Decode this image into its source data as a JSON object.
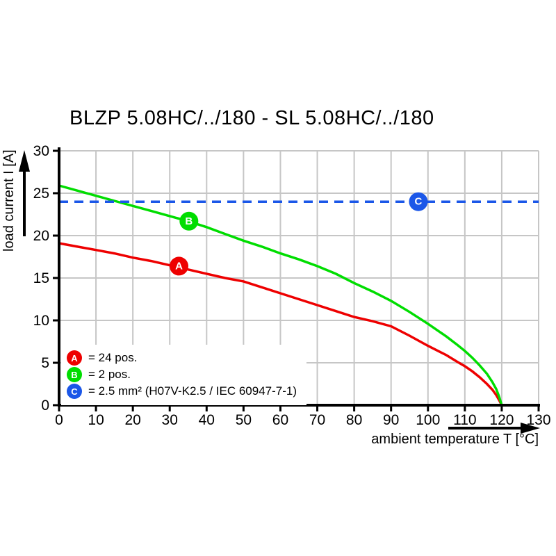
{
  "title": "BLZP 5.08HC/../180 - SL 5.08HC/../180",
  "colors": {
    "series_a_red": "#ee0000",
    "series_b_green": "#00dd00",
    "series_c_blue": "#1b57e8",
    "grid": "#c6c6c6",
    "axis": "#000000"
  },
  "chart_data": {
    "type": "line",
    "title": "BLZP 5.08HC/../180 - SL 5.08HC/../180",
    "xlabel": "ambient temperature T [°C]",
    "ylabel": "load current I [A]",
    "xlim": [
      0,
      130
    ],
    "ylim": [
      0,
      30
    ],
    "x_ticks": [
      0,
      10,
      20,
      30,
      40,
      50,
      60,
      70,
      80,
      90,
      100,
      110,
      120,
      130
    ],
    "y_ticks": [
      0,
      5,
      10,
      15,
      20,
      25,
      30
    ],
    "grid": true,
    "series": [
      {
        "id": "a",
        "name": "A = 24 pos.",
        "color": "#ee0000",
        "style": "solid",
        "points": [
          [
            0,
            19.1
          ],
          [
            5,
            18.7
          ],
          [
            10,
            18.3
          ],
          [
            15,
            17.9
          ],
          [
            20,
            17.4
          ],
          [
            25,
            17.0
          ],
          [
            30,
            16.5
          ],
          [
            35,
            16.0
          ],
          [
            40,
            15.5
          ],
          [
            45,
            15.0
          ],
          [
            50,
            14.6
          ],
          [
            55,
            13.9
          ],
          [
            60,
            13.2
          ],
          [
            65,
            12.5
          ],
          [
            70,
            11.8
          ],
          [
            75,
            11.1
          ],
          [
            80,
            10.4
          ],
          [
            85,
            9.9
          ],
          [
            90,
            9.3
          ],
          [
            95,
            8.2
          ],
          [
            100,
            7.0
          ],
          [
            105,
            5.9
          ],
          [
            108,
            5.1
          ],
          [
            110,
            4.6
          ],
          [
            112,
            4.0
          ],
          [
            114,
            3.3
          ],
          [
            116,
            2.5
          ],
          [
            117.5,
            1.8
          ],
          [
            118.5,
            1.2
          ],
          [
            119.3,
            0.6
          ],
          [
            120,
            0
          ]
        ]
      },
      {
        "id": "b",
        "name": "B = 2 pos.",
        "color": "#00dd00",
        "style": "solid",
        "points": [
          [
            0,
            25.9
          ],
          [
            5,
            25.3
          ],
          [
            10,
            24.7
          ],
          [
            15,
            24.1
          ],
          [
            20,
            23.5
          ],
          [
            25,
            22.9
          ],
          [
            30,
            22.3
          ],
          [
            35,
            21.7
          ],
          [
            40,
            21.0
          ],
          [
            45,
            20.2
          ],
          [
            50,
            19.4
          ],
          [
            55,
            18.7
          ],
          [
            60,
            17.9
          ],
          [
            65,
            17.2
          ],
          [
            70,
            16.4
          ],
          [
            75,
            15.5
          ],
          [
            80,
            14.4
          ],
          [
            85,
            13.4
          ],
          [
            90,
            12.3
          ],
          [
            95,
            11.0
          ],
          [
            100,
            9.6
          ],
          [
            105,
            8.1
          ],
          [
            108,
            7.1
          ],
          [
            110,
            6.4
          ],
          [
            112,
            5.6
          ],
          [
            114,
            4.7
          ],
          [
            116,
            3.7
          ],
          [
            117.5,
            2.7
          ],
          [
            118.5,
            1.9
          ],
          [
            119.3,
            1.0
          ],
          [
            120,
            0
          ]
        ]
      },
      {
        "id": "c",
        "name": "C = 2.5 mm² (H07V-K2.5 / IEC 60947-7-1)",
        "color": "#1b57e8",
        "style": "dashed",
        "points": [
          [
            0,
            24
          ],
          [
            130,
            24
          ]
        ]
      }
    ],
    "markers": [
      {
        "label": "A",
        "color": "#ee0000",
        "x": 32.5,
        "y": 16.4
      },
      {
        "label": "B",
        "color": "#00dd00",
        "x": 35.2,
        "y": 21.7
      },
      {
        "label": "C",
        "color": "#1b57e8",
        "x": 97.4,
        "y": 24
      }
    ],
    "legend": {
      "position": "bottom-left",
      "items": [
        {
          "badge": "A",
          "color": "#ee0000",
          "label": "= 24 pos."
        },
        {
          "badge": "B",
          "color": "#00dd00",
          "label": "= 2 pos."
        },
        {
          "badge": "C",
          "color": "#1b57e8",
          "label": "= 2.5 mm² (H07V-K2.5 / IEC 60947-7-1)"
        }
      ]
    }
  }
}
